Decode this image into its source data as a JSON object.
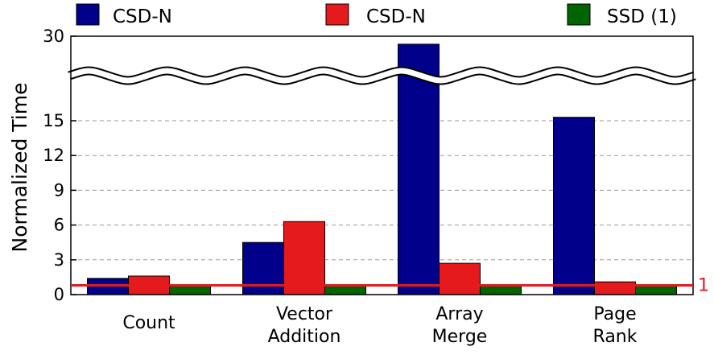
{
  "chart_data": {
    "type": "bar",
    "categories": [
      [
        "Count"
      ],
      [
        "Vector",
        "Addition"
      ],
      [
        "Array",
        "Merge"
      ],
      [
        "Page",
        "Rank"
      ]
    ],
    "series": [
      {
        "name": "CSD-N",
        "color": "#00008b",
        "values": [
          1.4,
          4.5,
          28.5,
          15.3
        ]
      },
      {
        "name": "CSD-N",
        "color": "#e41a1c",
        "values": [
          1.6,
          6.3,
          2.7,
          1.1
        ]
      },
      {
        "name": "SSD (1)",
        "color": "#006400",
        "values": [
          0.8,
          0.8,
          0.8,
          0.8
        ]
      }
    ],
    "ylabel": "Normalized Time",
    "y_ticks": [
      "0",
      "3",
      "6",
      "9",
      "12",
      "15",
      "30"
    ],
    "ylim": [
      0,
      30
    ],
    "axis_break": true,
    "grid": "horizontal dashed",
    "legend_position": "top",
    "reference_line": {
      "value": 0.8,
      "label": "1",
      "color": "#e41a1c"
    }
  }
}
